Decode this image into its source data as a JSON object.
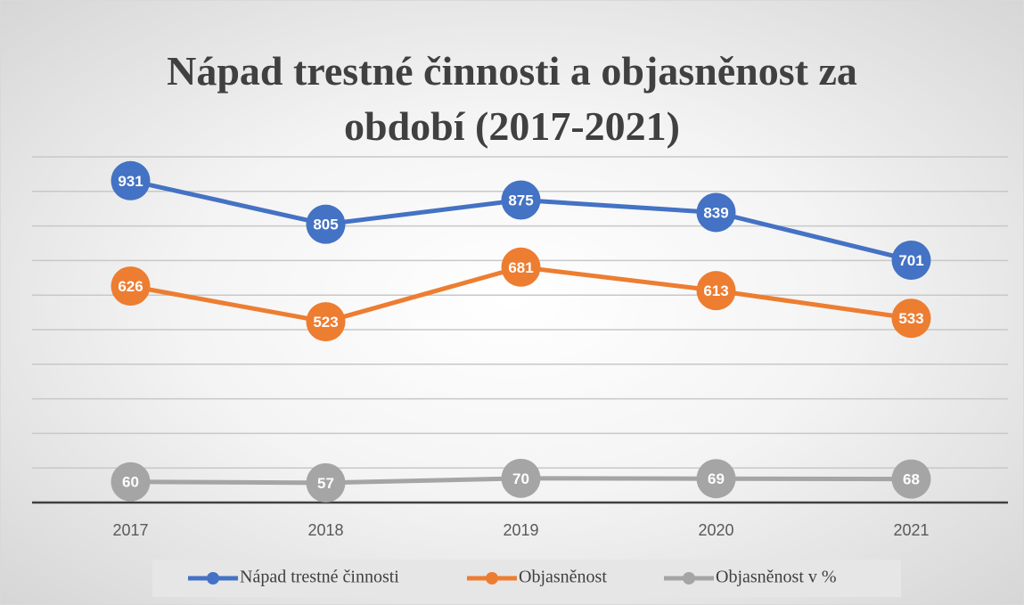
{
  "chart_data": {
    "type": "line",
    "title": "Nápad trestné činnosti a objasněnost za období (2017-2021)",
    "categories": [
      "2017",
      "2018",
      "2019",
      "2020",
      "2021"
    ],
    "series": [
      {
        "name": "Nápad trestné činnosti",
        "color": "#4472c4",
        "values": [
          931,
          805,
          875,
          839,
          701
        ]
      },
      {
        "name": "Objasněnost",
        "color": "#ed7d31",
        "values": [
          626,
          523,
          681,
          613,
          533
        ]
      },
      {
        "name": "Objasněnost v %",
        "color": "#a5a5a5",
        "values": [
          60,
          57,
          70,
          69,
          68
        ]
      }
    ],
    "ylim": [
      0,
      1000
    ],
    "yticks": [
      0,
      100,
      200,
      300,
      400,
      500,
      600,
      700,
      800,
      900,
      1000
    ],
    "show_ytick_labels": false,
    "grid": true,
    "data_labels": true,
    "legend": "bottom"
  }
}
